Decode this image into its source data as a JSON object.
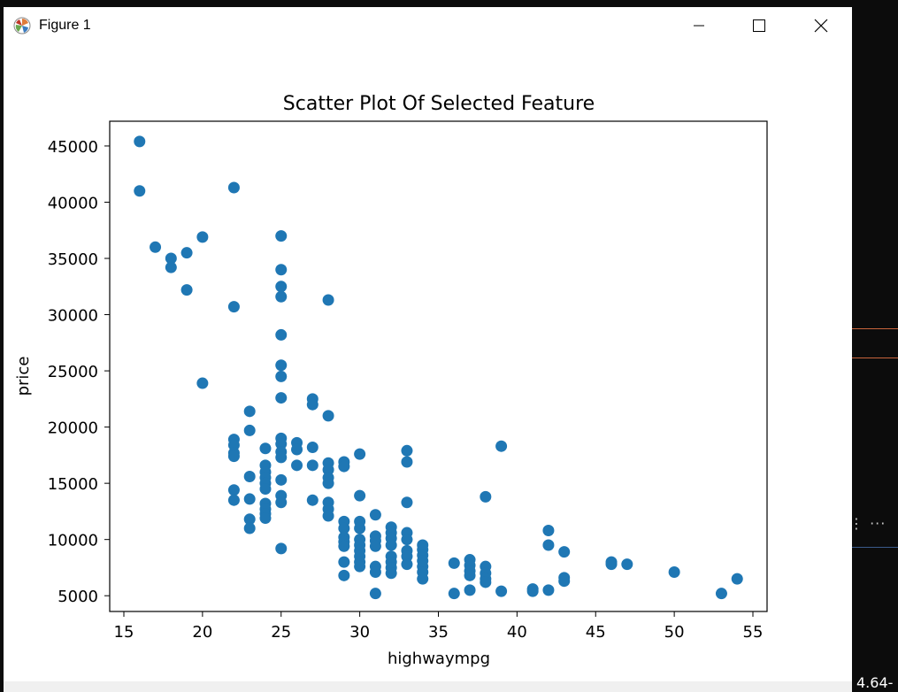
{
  "window": {
    "title": "Figure 1"
  },
  "background_fragment": "4.64-",
  "chart_data": {
    "type": "scatter",
    "title": "Scatter Plot Of Selected Feature",
    "xlabel": "highwaympg",
    "ylabel": "price",
    "xlim": [
      14.1,
      55.9
    ],
    "ylim": [
      3600,
      47200
    ],
    "xticks": [
      15,
      20,
      25,
      30,
      35,
      40,
      45,
      50,
      55
    ],
    "yticks": [
      5000,
      10000,
      15000,
      20000,
      25000,
      30000,
      35000,
      40000,
      45000
    ],
    "marker_color": "#1f77b4",
    "points": [
      [
        16,
        45400
      ],
      [
        16,
        41000
      ],
      [
        17,
        36000
      ],
      [
        18,
        35000
      ],
      [
        18,
        34200
      ],
      [
        19,
        35500
      ],
      [
        19,
        32200
      ],
      [
        20,
        36900
      ],
      [
        20,
        23900
      ],
      [
        22,
        41300
      ],
      [
        22,
        30700
      ],
      [
        22,
        18900
      ],
      [
        22,
        18400
      ],
      [
        22,
        17700
      ],
      [
        22,
        17400
      ],
      [
        22,
        14400
      ],
      [
        22,
        13500
      ],
      [
        23,
        21400
      ],
      [
        23,
        19700
      ],
      [
        23,
        15600
      ],
      [
        23,
        13600
      ],
      [
        23,
        11800
      ],
      [
        23,
        11000
      ],
      [
        24,
        18100
      ],
      [
        24,
        16600
      ],
      [
        24,
        16000
      ],
      [
        24,
        15500
      ],
      [
        24,
        15000
      ],
      [
        24,
        14500
      ],
      [
        24,
        13200
      ],
      [
        24,
        12700
      ],
      [
        24,
        12300
      ],
      [
        24,
        11900
      ],
      [
        25,
        37000
      ],
      [
        25,
        34000
      ],
      [
        25,
        32500
      ],
      [
        25,
        31600
      ],
      [
        25,
        28200
      ],
      [
        25,
        25500
      ],
      [
        25,
        24500
      ],
      [
        25,
        22600
      ],
      [
        25,
        19000
      ],
      [
        25,
        18500
      ],
      [
        25,
        17800
      ],
      [
        25,
        17300
      ],
      [
        25,
        15300
      ],
      [
        25,
        13900
      ],
      [
        25,
        13300
      ],
      [
        25,
        9200
      ],
      [
        26,
        18600
      ],
      [
        26,
        18000
      ],
      [
        26,
        16600
      ],
      [
        27,
        22500
      ],
      [
        27,
        22000
      ],
      [
        27,
        18200
      ],
      [
        27,
        16600
      ],
      [
        27,
        13500
      ],
      [
        28,
        31300
      ],
      [
        28,
        21000
      ],
      [
        28,
        16800
      ],
      [
        28,
        16200
      ],
      [
        28,
        15500
      ],
      [
        28,
        15000
      ],
      [
        28,
        13300
      ],
      [
        28,
        12700
      ],
      [
        28,
        12100
      ],
      [
        29,
        16900
      ],
      [
        29,
        16500
      ],
      [
        29,
        11600
      ],
      [
        29,
        11000
      ],
      [
        29,
        10200
      ],
      [
        29,
        9800
      ],
      [
        29,
        9400
      ],
      [
        29,
        8000
      ],
      [
        29,
        6800
      ],
      [
        30,
        17600
      ],
      [
        30,
        13900
      ],
      [
        30,
        11600
      ],
      [
        30,
        11000
      ],
      [
        30,
        10000
      ],
      [
        30,
        9500
      ],
      [
        30,
        9000
      ],
      [
        30,
        8500
      ],
      [
        30,
        8000
      ],
      [
        30,
        7600
      ],
      [
        31,
        12200
      ],
      [
        31,
        10300
      ],
      [
        31,
        9900
      ],
      [
        31,
        9400
      ],
      [
        31,
        7600
      ],
      [
        31,
        7100
      ],
      [
        31,
        5200
      ],
      [
        32,
        11100
      ],
      [
        32,
        10600
      ],
      [
        32,
        10100
      ],
      [
        32,
        9500
      ],
      [
        32,
        8500
      ],
      [
        32,
        8000
      ],
      [
        32,
        7500
      ],
      [
        32,
        7000
      ],
      [
        33,
        17900
      ],
      [
        33,
        16900
      ],
      [
        33,
        13300
      ],
      [
        33,
        10600
      ],
      [
        33,
        10000
      ],
      [
        33,
        9000
      ],
      [
        33,
        8500
      ],
      [
        33,
        7800
      ],
      [
        34,
        9500
      ],
      [
        34,
        9100
      ],
      [
        34,
        8600
      ],
      [
        34,
        8100
      ],
      [
        34,
        7600
      ],
      [
        34,
        7100
      ],
      [
        34,
        6500
      ],
      [
        36,
        7900
      ],
      [
        36,
        5200
      ],
      [
        37,
        8200
      ],
      [
        37,
        7700
      ],
      [
        37,
        7200
      ],
      [
        37,
        6800
      ],
      [
        37,
        5500
      ],
      [
        38,
        13800
      ],
      [
        38,
        7600
      ],
      [
        38,
        7000
      ],
      [
        38,
        6500
      ],
      [
        38,
        6200
      ],
      [
        39,
        18300
      ],
      [
        39,
        5400
      ],
      [
        41,
        5600
      ],
      [
        41,
        5400
      ],
      [
        42,
        10800
      ],
      [
        42,
        9500
      ],
      [
        42,
        5500
      ],
      [
        43,
        8900
      ],
      [
        43,
        6600
      ],
      [
        43,
        6300
      ],
      [
        46,
        8000
      ],
      [
        46,
        7800
      ],
      [
        47,
        7800
      ],
      [
        50,
        7100
      ],
      [
        53,
        5200
      ],
      [
        54,
        6500
      ]
    ]
  }
}
